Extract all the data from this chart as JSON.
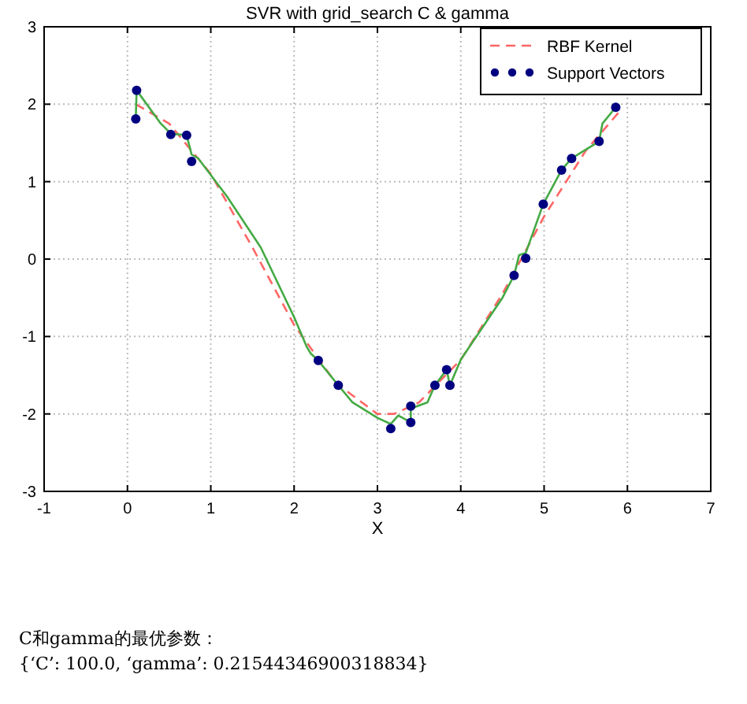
{
  "chart_data": {
    "type": "line",
    "title": "SVR with grid_search C & gamma",
    "xlabel": "X",
    "xlim": [
      -1,
      7
    ],
    "xticks": [
      -1,
      0,
      1,
      2,
      3,
      4,
      5,
      6,
      7
    ],
    "ylim": [
      -3,
      3
    ],
    "yticks": [
      -3,
      -2,
      -1,
      0,
      1,
      2,
      3
    ],
    "grid": true,
    "legend": "top right",
    "series": [
      {
        "name": "RBF Kernel",
        "type": "line",
        "color": "#ff6666",
        "line_style": "dashed",
        "x": [
          0.1,
          0.5,
          1.0,
          1.5,
          2.0,
          2.5,
          3.0,
          3.2,
          3.5,
          4.0,
          4.5,
          5.0,
          5.5,
          5.9
        ],
        "values": [
          2.0,
          1.75,
          1.1,
          0.15,
          -0.85,
          -1.6,
          -2.0,
          -2.0,
          -1.85,
          -1.3,
          -0.45,
          0.55,
          1.4,
          1.9
        ]
      },
      {
        "color": "#44aa44",
        "line_style": "solid",
        "x": [
          0.1,
          0.11,
          0.4,
          0.52,
          0.71,
          0.77,
          0.85,
          1.2,
          1.6,
          2.0,
          2.15,
          2.2,
          2.29,
          2.53,
          2.7,
          3.0,
          3.16,
          3.25,
          3.4,
          3.4,
          3.6,
          3.69,
          3.83,
          3.87,
          4.0,
          4.5,
          4.64,
          4.7,
          4.78,
          4.99,
          5.21,
          5.33,
          5.66,
          5.7,
          5.86
        ],
        "values": [
          1.81,
          2.18,
          1.75,
          1.62,
          1.6,
          1.35,
          1.3,
          0.8,
          0.15,
          -0.75,
          -1.13,
          -1.22,
          -1.31,
          -1.63,
          -1.85,
          -2.05,
          -2.13,
          -2.02,
          -2.11,
          -1.93,
          -1.85,
          -1.63,
          -1.43,
          -1.63,
          -1.3,
          -0.5,
          -0.21,
          0.05,
          0.08,
          0.71,
          1.15,
          1.3,
          1.52,
          1.75,
          1.96
        ]
      },
      {
        "name": "Support Vectors",
        "type": "scatter",
        "color": "#000080",
        "marker": "circle",
        "x": [
          0.11,
          0.1,
          0.52,
          0.71,
          0.77,
          2.29,
          2.53,
          3.16,
          3.4,
          3.4,
          3.69,
          3.83,
          3.87,
          4.64,
          4.78,
          4.99,
          5.21,
          5.33,
          5.66,
          5.86
        ],
        "values": [
          2.18,
          1.81,
          1.61,
          1.6,
          1.26,
          -1.31,
          -1.63,
          -2.19,
          -1.9,
          -2.11,
          -1.63,
          -1.43,
          -1.63,
          -0.21,
          0.01,
          0.71,
          1.15,
          1.3,
          1.52,
          1.96
        ]
      }
    ],
    "annotations": [
      "C和gamma的最优参数：",
      "{‘C’: 100.0, ‘gamma’: 0.21544346900318834}"
    ]
  }
}
